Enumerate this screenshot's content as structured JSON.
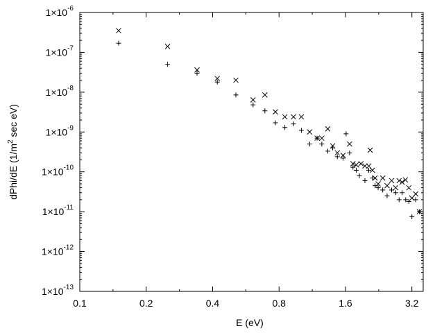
{
  "chart_data": {
    "type": "scatter",
    "title": "",
    "xlabel": "E (eV)",
    "ylabel": {
      "prefix": "dPhi/dE  (1/m",
      "superscript": "2",
      "suffix": " sec eV)"
    },
    "x_scale": "log2",
    "y_scale": "log10",
    "xlim": [
      0.1,
      3.6
    ],
    "ylim": [
      1e-13,
      1e-06
    ],
    "x_ticks": [
      {
        "value": 0.1,
        "label": "0.1"
      },
      {
        "value": 0.2,
        "label": "0.2"
      },
      {
        "value": 0.4,
        "label": "0.4"
      },
      {
        "value": 0.8,
        "label": "0.8"
      },
      {
        "value": 1.6,
        "label": "1.6"
      },
      {
        "value": 3.2,
        "label": "3.2"
      }
    ],
    "y_ticks": [
      {
        "value": 1e-13,
        "mantissa": "1×10",
        "exponent": "-13"
      },
      {
        "value": 1e-12,
        "mantissa": "1×10",
        "exponent": "-12"
      },
      {
        "value": 1e-11,
        "mantissa": "1×10",
        "exponent": "-11"
      },
      {
        "value": 1e-10,
        "mantissa": "1×10",
        "exponent": "-10"
      },
      {
        "value": 1e-09,
        "mantissa": "1×10",
        "exponent": "-9"
      },
      {
        "value": 1e-08,
        "mantissa": "1×10",
        "exponent": "-8"
      },
      {
        "value": 1e-07,
        "mantissa": "1×10",
        "exponent": "-7"
      },
      {
        "value": 1e-06,
        "mantissa": "1×10",
        "exponent": "-6"
      }
    ],
    "grid": false,
    "legend": "none",
    "series": [
      {
        "marker": "x",
        "color": "#000000",
        "points": [
          [
            0.15,
            3.5e-07
          ],
          [
            0.25,
            1.4e-07
          ],
          [
            0.34,
            3.6e-08
          ],
          [
            0.42,
            2.2e-08
          ],
          [
            0.51,
            2e-08
          ],
          [
            0.61,
            6.4e-09
          ],
          [
            0.69,
            8.5e-09
          ],
          [
            0.77,
            3.2e-09
          ],
          [
            0.85,
            2.4e-09
          ],
          [
            0.93,
            2.4e-09
          ],
          [
            1.01,
            2.4e-09
          ],
          [
            1.1,
            1e-09
          ],
          [
            1.19,
            7e-10
          ],
          [
            1.25,
            7e-10
          ],
          [
            1.33,
            1.2e-09
          ],
          [
            1.4,
            4.5e-10
          ],
          [
            1.47,
            3e-10
          ],
          [
            1.56,
            2.6e-10
          ],
          [
            1.67,
            5e-10
          ],
          [
            1.73,
            1.6e-10
          ],
          [
            1.79,
            1.5e-10
          ],
          [
            1.88,
            1.6e-10
          ],
          [
            1.96,
            1.4e-10
          ],
          [
            2.04,
            1.4e-10
          ],
          [
            2.07,
            3.5e-10
          ],
          [
            2.12,
            1.1e-10
          ],
          [
            2.18,
            7e-11
          ],
          [
            2.25,
            5e-11
          ],
          [
            2.36,
            7e-11
          ],
          [
            2.47,
            4.5e-11
          ],
          [
            2.59,
            6e-11
          ],
          [
            2.7,
            4e-11
          ],
          [
            2.8,
            6e-11
          ],
          [
            2.89,
            5.5e-11
          ],
          [
            2.99,
            6.3e-11
          ],
          [
            3.1,
            4e-11
          ],
          [
            3.2,
            2.2e-11
          ],
          [
            3.33,
            2.8e-11
          ],
          [
            3.46,
            1e-11
          ]
        ]
      },
      {
        "marker": "+",
        "color": "#000000",
        "points": [
          [
            0.15,
            1.7e-07
          ],
          [
            0.25,
            5e-08
          ],
          [
            0.34,
            3e-08
          ],
          [
            0.42,
            1.8e-08
          ],
          [
            0.51,
            8.5e-09
          ],
          [
            0.61,
            4.8e-09
          ],
          [
            0.69,
            3.4e-09
          ],
          [
            0.77,
            1.7e-09
          ],
          [
            0.85,
            1.3e-09
          ],
          [
            0.93,
            1.6e-09
          ],
          [
            1.01,
            1.1e-09
          ],
          [
            1.1,
            5e-10
          ],
          [
            1.19,
            7e-10
          ],
          [
            1.25,
            5e-10
          ],
          [
            1.33,
            3.3e-10
          ],
          [
            1.4,
            4e-10
          ],
          [
            1.47,
            2.4e-10
          ],
          [
            1.56,
            2.2e-10
          ],
          [
            1.61,
            9e-10
          ],
          [
            1.67,
            3e-10
          ],
          [
            1.73,
            1.3e-10
          ],
          [
            1.79,
            1.1e-10
          ],
          [
            1.85,
            8e-11
          ],
          [
            1.96,
            6e-11
          ],
          [
            2.04,
            1.1e-10
          ],
          [
            2.12,
            7e-11
          ],
          [
            2.18,
            4.5e-11
          ],
          [
            2.25,
            4e-11
          ],
          [
            2.36,
            3.5e-11
          ],
          [
            2.47,
            2.5e-11
          ],
          [
            2.59,
            3.5e-11
          ],
          [
            2.7,
            3e-11
          ],
          [
            2.8,
            2e-11
          ],
          [
            2.89,
            3e-11
          ],
          [
            3.0,
            2e-11
          ],
          [
            3.1,
            1.8e-11
          ],
          [
            3.2,
            7.5e-12
          ],
          [
            3.33,
            2e-11
          ],
          [
            3.46,
            1e-11
          ]
        ]
      }
    ]
  }
}
